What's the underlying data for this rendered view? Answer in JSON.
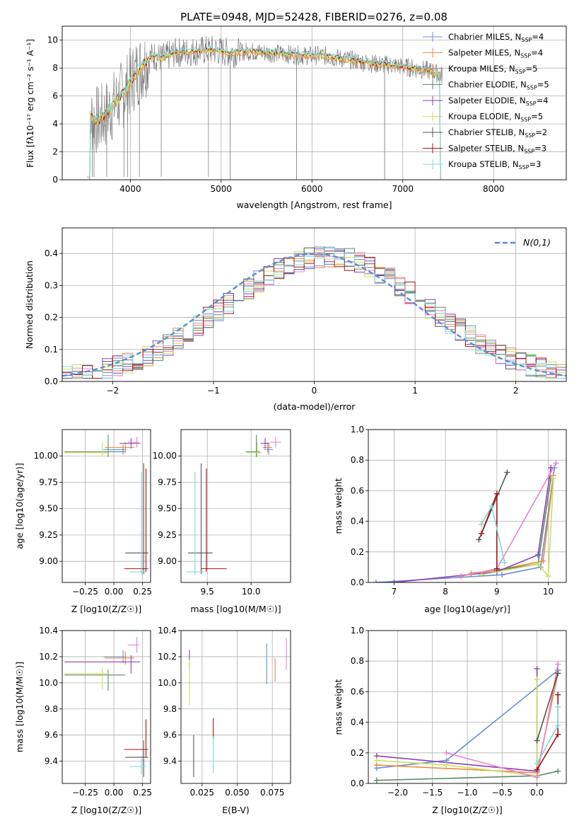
{
  "figure_title": "PLATE=0948, MJD=52428, FIBERID=0276, z=0.08",
  "colors": {
    "c1": "#6a8fd4",
    "c2": "#ee8844",
    "c3": "#5a8a6a",
    "c4": "#8e3fb5",
    "c5": "#c9e05a",
    "c6": "#e882c8",
    "c7": "#555555",
    "c8": "#aa1111",
    "c9": "#7fd8d8"
  },
  "chart_data": [
    {
      "id": "spectrum",
      "type": "line",
      "title": "PLATE=0948, MJD=52428, FIBERID=0276, z=0.08",
      "xlabel": "wavelength [Angstrom, rest frame]",
      "ylabel": "Flux [fλ10⁻¹⁷ erg cm⁻² s⁻¹ A⁻¹]",
      "xlim": [
        3250,
        8800
      ],
      "ylim": [
        0,
        11
      ],
      "xticks": [
        4000,
        5000,
        6000,
        7000,
        8000
      ],
      "yticks": [
        0,
        2,
        4,
        6,
        8,
        10
      ],
      "legend_position": "right",
      "legend": [
        "Chabrier MILES, N_SSP=4",
        "Salpeter MILES, N_SSP=4",
        "Kroupa MILES, N_SSP=5",
        "Chabrier ELODIE, N_SSP=5",
        "Salpeter ELODIE, N_SSP=4",
        "Kroupa ELODIE, N_SSP=5",
        "Chabrier STELIB, N_SSP=2",
        "Salpeter STELIB, N_SSP=3",
        "Kroupa STELIB, N_SSP=3"
      ],
      "legend_display": [
        {
          "base": "Chabrier MILES, N",
          "sub": "SSP",
          "tail": "=4"
        },
        {
          "base": "Salpeter MILES, N",
          "sub": "SSP",
          "tail": "=4"
        },
        {
          "base": "Kroupa MILES, N",
          "sub": "SSP",
          "tail": "=5"
        },
        {
          "base": "Chabrier ELODIE, N",
          "sub": "SSP",
          "tail": "=5"
        },
        {
          "base": "Salpeter ELODIE, N",
          "sub": "SSP",
          "tail": "=4"
        },
        {
          "base": "Kroupa ELODIE, N",
          "sub": "SSP",
          "tail": "=5"
        },
        {
          "base": "Chabrier STELIB, N",
          "sub": "SSP",
          "tail": "=2"
        },
        {
          "base": "Salpeter STELIB, N",
          "sub": "SSP",
          "tail": "=3"
        },
        {
          "base": "Kroupa STELIB, N",
          "sub": "SSP",
          "tail": "=3"
        }
      ],
      "data_profile": {
        "x": [
          3550,
          3650,
          3750,
          3850,
          3950,
          4050,
          4150,
          4250,
          4350,
          4500,
          4700,
          4900,
          5100,
          5300,
          5500,
          5700,
          5900,
          6100,
          6300,
          6500,
          6700,
          6900,
          7100,
          7300,
          7420
        ],
        "y": [
          4.5,
          4.2,
          4.8,
          5.6,
          6.4,
          7.5,
          8.3,
          8.9,
          8.7,
          9.1,
          9.2,
          9.3,
          9.1,
          9.2,
          9.1,
          9.0,
          8.9,
          8.9,
          8.7,
          8.5,
          8.3,
          8.2,
          8.0,
          7.8,
          7.5
        ]
      }
    },
    {
      "id": "residuals",
      "type": "histogram",
      "xlabel": "(data-model)/error",
      "ylabel": "Normed distribution",
      "xlim": [
        -2.5,
        2.5
      ],
      "ylim": [
        0,
        0.48
      ],
      "xticks": [
        -2,
        -1,
        0,
        1,
        2
      ],
      "yticks": [
        0.0,
        0.1,
        0.2,
        0.3,
        0.4
      ],
      "legend": [
        "N(0,1)"
      ],
      "legend_position": "upper right",
      "bins": {
        "start": -2.5,
        "width": 0.1,
        "count": 50
      }
    },
    {
      "id": "age_vs_z",
      "type": "scatter",
      "xlabel": "Z [log10(Z/Z☉)]",
      "ylabel": "age [log10(age/yr)]",
      "xlim": [
        -0.45,
        0.32
      ],
      "ylim": [
        8.8,
        10.25
      ],
      "xticks": [
        -0.25,
        0.0,
        0.25
      ],
      "yticks": [
        9.0,
        9.25,
        9.5,
        9.75,
        10.0
      ],
      "points": [
        {
          "x": 0.08,
          "y": 10.06,
          "xerr": [
            0.17,
            0.03
          ],
          "yerr": [
            0.05,
            0.05
          ],
          "c": "c1"
        },
        {
          "x": 0.1,
          "y": 10.08,
          "xerr": [
            0.18,
            0.08
          ],
          "yerr": [
            0.05,
            0.05
          ],
          "c": "c2"
        },
        {
          "x": -0.05,
          "y": 10.04,
          "xerr": [
            0.38,
            0.15
          ],
          "yerr": [
            0.05,
            0.16
          ],
          "c": "c3"
        },
        {
          "x": 0.15,
          "y": 10.12,
          "xerr": [
            0.1,
            0.08
          ],
          "yerr": [
            0.05,
            0.05
          ],
          "c": "c4"
        },
        {
          "x": -0.1,
          "y": 10.03,
          "xerr": [
            0.33,
            0.05
          ],
          "yerr": [
            0.04,
            0.1
          ],
          "c": "c5"
        },
        {
          "x": 0.2,
          "y": 10.13,
          "xerr": [
            0.08,
            0.02
          ],
          "yerr": [
            0.05,
            0.05
          ],
          "c": "c6"
        },
        {
          "x": 0.26,
          "y": 9.08,
          "xerr": [
            0.16,
            0.04
          ],
          "yerr": [
            0.2,
            0.85
          ],
          "c": "c7"
        },
        {
          "x": 0.28,
          "y": 8.93,
          "xerr": [
            0.19,
            0.02
          ],
          "yerr": [
            0.03,
            0.95
          ],
          "c": "c8"
        },
        {
          "x": 0.24,
          "y": 8.9,
          "xerr": [
            0.1,
            0.04
          ],
          "yerr": [
            0.03,
            0.95
          ],
          "c": "c9"
        }
      ]
    },
    {
      "id": "age_vs_mass",
      "type": "scatter",
      "xlabel": "mass [log10(M/M☉)]",
      "ylabel": "",
      "xlim": [
        9.2,
        10.45
      ],
      "ylim": [
        8.8,
        10.25
      ],
      "xticks": [
        9.5,
        10.0
      ],
      "yticks": [
        9.0,
        9.25,
        9.5,
        9.75,
        10.0
      ],
      "points": [
        {
          "x": 10.2,
          "y": 10.06,
          "xerr": [
            0.05,
            0.05
          ],
          "yerr": [
            0.05,
            0.05
          ],
          "c": "c1"
        },
        {
          "x": 10.19,
          "y": 10.08,
          "xerr": [
            0.06,
            0.05
          ],
          "yerr": [
            0.05,
            0.05
          ],
          "c": "c2"
        },
        {
          "x": 10.06,
          "y": 10.04,
          "xerr": [
            0.12,
            0.04
          ],
          "yerr": [
            0.05,
            0.16
          ],
          "c": "c3"
        },
        {
          "x": 10.16,
          "y": 10.12,
          "xerr": [
            0.05,
            0.05
          ],
          "yerr": [
            0.05,
            0.05
          ],
          "c": "c4"
        },
        {
          "x": 10.07,
          "y": 10.03,
          "xerr": [
            0.12,
            0.05
          ],
          "yerr": [
            0.04,
            0.1
          ],
          "c": "c5"
        },
        {
          "x": 10.28,
          "y": 10.13,
          "xerr": [
            0.06,
            0.06
          ],
          "yerr": [
            0.05,
            0.05
          ],
          "c": "c6"
        },
        {
          "x": 9.43,
          "y": 9.08,
          "xerr": [
            0.15,
            0.13
          ],
          "yerr": [
            0.2,
            0.85
          ],
          "c": "c7"
        },
        {
          "x": 9.49,
          "y": 8.93,
          "xerr": [
            0.06,
            0.23
          ],
          "yerr": [
            0.03,
            0.95
          ],
          "c": "c8"
        },
        {
          "x": 9.36,
          "y": 8.9,
          "xerr": [
            0.1,
            0.1
          ],
          "yerr": [
            0.03,
            0.95
          ],
          "c": "c9"
        }
      ]
    },
    {
      "id": "weight_vs_age",
      "type": "line",
      "xlabel": "age [log10(age/yr)]",
      "ylabel": "mass weight",
      "xlim": [
        6.5,
        10.35
      ],
      "ylim": [
        0,
        1.0
      ],
      "xticks": [
        7,
        8,
        9,
        10
      ],
      "yticks": [
        0.0,
        0.2,
        0.4,
        0.6,
        0.8,
        1.0
      ],
      "series": [
        {
          "c": "c1",
          "x": [
            6.65,
            9.1,
            9.85,
            10.12
          ],
          "y": [
            0.0,
            0.05,
            0.1,
            0.75
          ]
        },
        {
          "c": "c2",
          "x": [
            8.5,
            9.0,
            9.9,
            10.1
          ],
          "y": [
            0.06,
            0.08,
            0.14,
            0.7
          ]
        },
        {
          "c": "c3",
          "x": [
            9.0,
            9.8,
            10.05
          ],
          "y": [
            0.08,
            0.12,
            0.68
          ]
        },
        {
          "c": "c4",
          "x": [
            7.0,
            9.0,
            9.8,
            10.05
          ],
          "y": [
            0.0,
            0.07,
            0.18,
            0.75
          ]
        },
        {
          "c": "c5",
          "x": [
            8.7,
            9.8,
            10.0,
            10.1
          ],
          "y": [
            0.05,
            0.12,
            0.04,
            0.68
          ]
        },
        {
          "c": "c6",
          "x": [
            8.3,
            9.0,
            10.15
          ],
          "y": [
            0.04,
            0.09,
            0.78
          ]
        },
        {
          "c": "c7",
          "x": [
            8.65,
            9.2
          ],
          "y": [
            0.28,
            0.72
          ]
        },
        {
          "c": "c8",
          "x": [
            8.7,
            9.0,
            9.0
          ],
          "y": [
            0.32,
            0.58,
            0.09
          ]
        },
        {
          "c": "c9",
          "x": [
            8.7,
            8.9,
            9.15
          ],
          "y": [
            0.38,
            0.5,
            0.13
          ]
        }
      ]
    },
    {
      "id": "mass_vs_z",
      "type": "scatter",
      "xlabel": "Z [log10(Z/Z☉)]",
      "ylabel": "mass [log10(M/M☉)]",
      "xlim": [
        -0.45,
        0.32
      ],
      "ylim": [
        9.23,
        10.4
      ],
      "xticks": [
        -0.25,
        0.0,
        0.25
      ],
      "yticks": [
        9.4,
        9.6,
        9.8,
        10.0,
        10.2,
        10.4
      ],
      "points": [
        {
          "x": 0.08,
          "y": 10.2,
          "xerr": [
            0.17,
            0.03
          ],
          "yerr": [
            0.05,
            0.05
          ],
          "c": "c1"
        },
        {
          "x": 0.1,
          "y": 10.19,
          "xerr": [
            0.18,
            0.08
          ],
          "yerr": [
            0.05,
            0.05
          ],
          "c": "c2"
        },
        {
          "x": -0.05,
          "y": 10.06,
          "xerr": [
            0.38,
            0.15
          ],
          "yerr": [
            0.12,
            0.04
          ],
          "c": "c3"
        },
        {
          "x": 0.15,
          "y": 10.16,
          "xerr": [
            0.58,
            0.08
          ],
          "yerr": [
            0.09,
            0.05
          ],
          "c": "c4"
        },
        {
          "x": -0.1,
          "y": 10.07,
          "xerr": [
            0.33,
            0.05
          ],
          "yerr": [
            0.12,
            0.05
          ],
          "c": "c5"
        },
        {
          "x": 0.2,
          "y": 10.29,
          "xerr": [
            0.08,
            0.02
          ],
          "yerr": [
            0.06,
            0.06
          ],
          "c": "c6"
        },
        {
          "x": 0.26,
          "y": 9.43,
          "xerr": [
            0.16,
            0.04
          ],
          "yerr": [
            0.15,
            0.13
          ],
          "c": "c7"
        },
        {
          "x": 0.28,
          "y": 9.49,
          "xerr": [
            0.19,
            0.02
          ],
          "yerr": [
            0.06,
            0.23
          ],
          "c": "c8"
        },
        {
          "x": 0.24,
          "y": 9.36,
          "xerr": [
            0.1,
            0.04
          ],
          "yerr": [
            0.06,
            0.06
          ],
          "c": "c9"
        }
      ]
    },
    {
      "id": "mass_vs_ebv",
      "type": "scatter",
      "xlabel": "E(B-V)",
      "ylabel": "",
      "xlim": [
        0.01,
        0.088
      ],
      "ylim": [
        9.23,
        10.4
      ],
      "xticks": [
        0.025,
        0.05,
        0.075
      ],
      "yticks": [
        9.4,
        9.6,
        9.8,
        10.0,
        10.2,
        10.4
      ],
      "points": [
        {
          "x": 0.071,
          "y": 10.14,
          "yerr": [
            0.15,
            0.16
          ],
          "c": "c1"
        },
        {
          "x": 0.077,
          "y": 10.07,
          "yerr": [
            0.06,
            0.12
          ],
          "c": "c2"
        },
        {
          "x": 0.085,
          "y": 10.2,
          "yerr": [
            0.1,
            0.14
          ],
          "c": "c6"
        },
        {
          "x": 0.016,
          "y": 10.15,
          "yerr": [
            0.05,
            0.1
          ],
          "c": "c4"
        },
        {
          "x": 0.016,
          "y": 10.0,
          "yerr": [
            0.17,
            0.18
          ],
          "c": "c5"
        },
        {
          "x": 0.019,
          "y": 9.43,
          "yerr": [
            0.15,
            0.17
          ],
          "c": "c7"
        },
        {
          "x": 0.033,
          "y": 9.63,
          "yerr": [
            0.06,
            0.1
          ],
          "c": "c8"
        },
        {
          "x": 0.033,
          "y": 9.47,
          "yerr": [
            0.16,
            0.12
          ],
          "c": "c9"
        }
      ]
    },
    {
      "id": "weight_vs_z",
      "type": "line",
      "xlabel": "Z [log10(Z/Z☉)]",
      "ylabel": "mass weight",
      "xlim": [
        -2.42,
        0.42
      ],
      "ylim": [
        0,
        1.0
      ],
      "xticks": [
        -2.0,
        -1.5,
        -1.0,
        -0.5,
        0.0
      ],
      "yticks": [
        0.0,
        0.2,
        0.4,
        0.6,
        0.8,
        1.0
      ],
      "series": [
        {
          "c": "c1",
          "x": [
            -2.3,
            -1.3,
            0.3
          ],
          "y": [
            0.1,
            0.15,
            0.74
          ]
        },
        {
          "c": "c2",
          "x": [
            -2.3,
            0.0,
            0.3
          ],
          "y": [
            0.12,
            0.07,
            0.72
          ]
        },
        {
          "c": "c3",
          "x": [
            -2.3,
            0.0,
            0.3
          ],
          "y": [
            0.02,
            0.05,
            0.08
          ]
        },
        {
          "c": "c4",
          "x": [
            -2.3,
            0.0,
            0.0
          ],
          "y": [
            0.18,
            0.08,
            0.75
          ]
        },
        {
          "c": "c5",
          "x": [
            -2.3,
            -1.3,
            0.0,
            0.0
          ],
          "y": [
            0.15,
            0.12,
            0.05,
            0.68
          ]
        },
        {
          "c": "c6",
          "x": [
            -1.3,
            0.0,
            0.3
          ],
          "y": [
            0.2,
            0.04,
            0.78
          ]
        },
        {
          "c": "c7",
          "x": [
            0.0,
            0.3
          ],
          "y": [
            0.28,
            0.72
          ]
        },
        {
          "c": "c8",
          "x": [
            0.0,
            0.3,
            0.3
          ],
          "y": [
            0.09,
            0.32,
            0.58
          ]
        },
        {
          "c": "c9",
          "x": [
            0.0,
            0.3,
            0.3
          ],
          "y": [
            0.13,
            0.38,
            0.5
          ]
        }
      ]
    }
  ]
}
